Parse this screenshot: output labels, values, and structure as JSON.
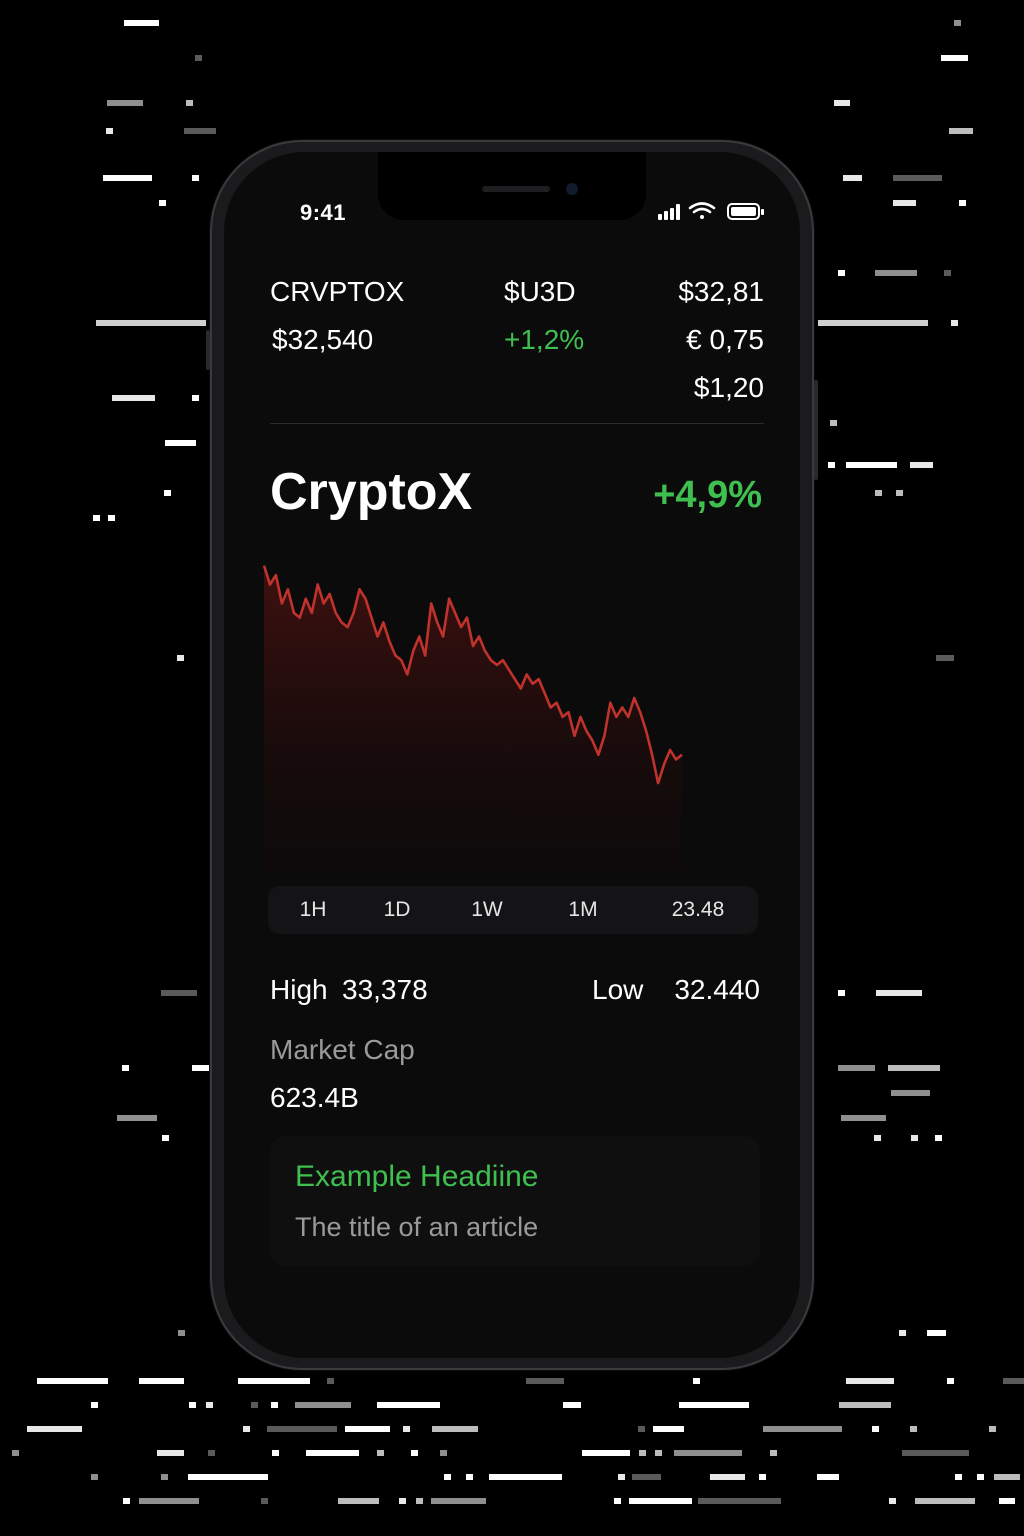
{
  "status_bar": {
    "time": "9:41",
    "icons": [
      "signal-icon",
      "wifi-icon",
      "battery-icon"
    ]
  },
  "ticker": {
    "col1": {
      "name": "CRVPTOX",
      "price": "$32,540"
    },
    "col2": {
      "name": "$U3D",
      "change": "+1,2%"
    },
    "col3": {
      "values": [
        "$32,81",
        "€ 0,75",
        "$1,20"
      ]
    }
  },
  "coin": {
    "name": "CryptoX",
    "change": "+4,9%"
  },
  "chart_data": {
    "type": "area",
    "title": "",
    "xlabel": "",
    "ylabel": "",
    "x": [
      0,
      1,
      2,
      3,
      4,
      5,
      6,
      7,
      8,
      9,
      10,
      11,
      12,
      13,
      14,
      15,
      16,
      17,
      18,
      19,
      20,
      21,
      22,
      23,
      24,
      25,
      26,
      27,
      28,
      29,
      30,
      31,
      32,
      33,
      34,
      35,
      36,
      37,
      38,
      39,
      40,
      41,
      42,
      43,
      44,
      45,
      46,
      47,
      48,
      49,
      50,
      51,
      52,
      53,
      54,
      55,
      56,
      57,
      58,
      59,
      60,
      61,
      62,
      63,
      64,
      65,
      66,
      67,
      68,
      69,
      70
    ],
    "series": [
      {
        "color": "#c0322c",
        "values": [
          100,
          92,
          96,
          84,
          90,
          80,
          78,
          86,
          80,
          92,
          84,
          88,
          80,
          76,
          74,
          80,
          90,
          86,
          78,
          70,
          76,
          68,
          62,
          60,
          54,
          64,
          70,
          62,
          84,
          76,
          70,
          86,
          80,
          74,
          78,
          66,
          70,
          64,
          60,
          58,
          60,
          56,
          52,
          48,
          54,
          50,
          52,
          46,
          40,
          42,
          36,
          38,
          28,
          36,
          30,
          26,
          20,
          28,
          42,
          36,
          40,
          36,
          44,
          38,
          30,
          20,
          8,
          16,
          22,
          18,
          20
        ]
      }
    ],
    "ylim": [
      0,
      110
    ],
    "grid": false,
    "legend": "none"
  },
  "ranges": [
    "1H",
    "1D",
    "1W",
    "1M",
    "23.48"
  ],
  "stats": {
    "high_label": "High",
    "high_value": "33,378",
    "low_label": "Low",
    "low_value": "32.440",
    "market_cap_label": "Market Cap",
    "market_cap_value": "623.4B"
  },
  "article": {
    "headline": "Example Headiine",
    "subtitle": "The title of an article"
  },
  "colors": {
    "accent_green": "#3fbf4f",
    "chart_red": "#c0322c",
    "background": "#0b0b0c"
  }
}
